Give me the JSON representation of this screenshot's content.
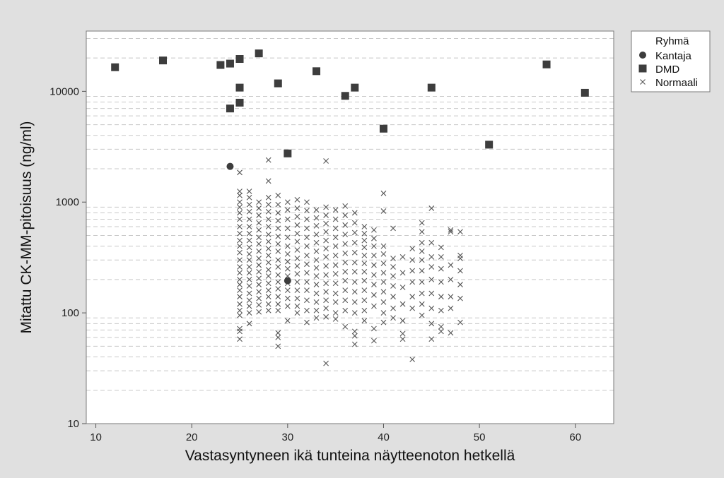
{
  "chart_data": {
    "type": "scatter",
    "xlabel": "Vastasyntyneen ikä tunteina näytteenoton hetkellä",
    "ylabel": "Mitattu CK-MM-pitoisuus (ng/ml)",
    "xlim": [
      9,
      64
    ],
    "ylim": [
      10,
      35000
    ],
    "yscale": "log",
    "x_ticks": [
      10,
      20,
      30,
      40,
      50,
      60
    ],
    "y_ticks": [
      10,
      100,
      1000,
      10000
    ],
    "grid": "horizontal dashed at minor log ticks",
    "legend": {
      "title": "Ryhmä",
      "placement": "outside-top-right"
    },
    "series": [
      {
        "name": "Kantaja",
        "marker": "circle",
        "color": "#3d3d3d",
        "points": [
          [
            24,
            2100
          ],
          [
            30,
            195
          ]
        ]
      },
      {
        "name": "DMD",
        "marker": "square",
        "color": "#3d3d3d",
        "points": [
          [
            12,
            16500
          ],
          [
            17,
            19000
          ],
          [
            23,
            17300
          ],
          [
            24,
            17800
          ],
          [
            24,
            7000
          ],
          [
            25,
            19600
          ],
          [
            25,
            10800
          ],
          [
            25,
            7900
          ],
          [
            27,
            22000
          ],
          [
            29,
            11800
          ],
          [
            30,
            2750
          ],
          [
            33,
            15200
          ],
          [
            36,
            9100
          ],
          [
            37,
            10800
          ],
          [
            40,
            4600
          ],
          [
            45,
            10800
          ],
          [
            51,
            3300
          ],
          [
            57,
            17500
          ],
          [
            61,
            9700
          ]
        ]
      },
      {
        "name": "Normaali",
        "marker": "x",
        "color": "#555555",
        "points": [
          [
            25,
            1850
          ],
          [
            25,
            1250
          ],
          [
            25,
            1150
          ],
          [
            25,
            1000
          ],
          [
            25,
            900
          ],
          [
            25,
            800
          ],
          [
            25,
            700
          ],
          [
            25,
            600
          ],
          [
            25,
            520
          ],
          [
            25,
            450
          ],
          [
            25,
            400
          ],
          [
            25,
            350
          ],
          [
            25,
            300
          ],
          [
            25,
            260
          ],
          [
            25,
            230
          ],
          [
            25,
            200
          ],
          [
            25,
            180
          ],
          [
            25,
            160
          ],
          [
            25,
            140
          ],
          [
            25,
            120
          ],
          [
            25,
            105
          ],
          [
            25,
            95
          ],
          [
            25,
            72
          ],
          [
            25,
            68
          ],
          [
            25,
            58
          ],
          [
            26,
            1250
          ],
          [
            26,
            1100
          ],
          [
            26,
            950
          ],
          [
            26,
            820
          ],
          [
            26,
            700
          ],
          [
            26,
            600
          ],
          [
            26,
            520
          ],
          [
            26,
            450
          ],
          [
            26,
            390
          ],
          [
            26,
            340
          ],
          [
            26,
            300
          ],
          [
            26,
            260
          ],
          [
            26,
            230
          ],
          [
            26,
            200
          ],
          [
            26,
            175
          ],
          [
            26,
            150
          ],
          [
            26,
            130
          ],
          [
            26,
            115
          ],
          [
            26,
            100
          ],
          [
            26,
            80
          ],
          [
            27,
            1000
          ],
          [
            27,
            880
          ],
          [
            27,
            760
          ],
          [
            27,
            650
          ],
          [
            27,
            560
          ],
          [
            27,
            480
          ],
          [
            27,
            420
          ],
          [
            27,
            360
          ],
          [
            27,
            310
          ],
          [
            27,
            270
          ],
          [
            27,
            235
          ],
          [
            27,
            205
          ],
          [
            27,
            180
          ],
          [
            27,
            155
          ],
          [
            27,
            135
          ],
          [
            27,
            118
          ],
          [
            27,
            102
          ],
          [
            28,
            2400
          ],
          [
            28,
            1550
          ],
          [
            28,
            1100
          ],
          [
            28,
            950
          ],
          [
            28,
            820
          ],
          [
            28,
            700
          ],
          [
            28,
            600
          ],
          [
            28,
            510
          ],
          [
            28,
            440
          ],
          [
            28,
            380
          ],
          [
            28,
            330
          ],
          [
            28,
            285
          ],
          [
            28,
            245
          ],
          [
            28,
            215
          ],
          [
            28,
            185
          ],
          [
            28,
            160
          ],
          [
            28,
            140
          ],
          [
            28,
            120
          ],
          [
            28,
            105
          ],
          [
            29,
            1150
          ],
          [
            29,
            950
          ],
          [
            29,
            800
          ],
          [
            29,
            680
          ],
          [
            29,
            580
          ],
          [
            29,
            490
          ],
          [
            29,
            420
          ],
          [
            29,
            360
          ],
          [
            29,
            300
          ],
          [
            29,
            260
          ],
          [
            29,
            220
          ],
          [
            29,
            190
          ],
          [
            29,
            165
          ],
          [
            29,
            140
          ],
          [
            29,
            120
          ],
          [
            29,
            105
          ],
          [
            29,
            66
          ],
          [
            29,
            60
          ],
          [
            29,
            50
          ],
          [
            30,
            1000
          ],
          [
            30,
            850
          ],
          [
            30,
            700
          ],
          [
            30,
            580
          ],
          [
            30,
            480
          ],
          [
            30,
            400
          ],
          [
            30,
            340
          ],
          [
            30,
            290
          ],
          [
            30,
            250
          ],
          [
            30,
            215
          ],
          [
            30,
            185
          ],
          [
            30,
            160
          ],
          [
            30,
            135
          ],
          [
            30,
            115
          ],
          [
            30,
            85
          ],
          [
            31,
            1050
          ],
          [
            31,
            880
          ],
          [
            31,
            740
          ],
          [
            31,
            620
          ],
          [
            31,
            520
          ],
          [
            31,
            440
          ],
          [
            31,
            370
          ],
          [
            31,
            310
          ],
          [
            31,
            265
          ],
          [
            31,
            225
          ],
          [
            31,
            190
          ],
          [
            31,
            160
          ],
          [
            31,
            135
          ],
          [
            31,
            115
          ],
          [
            31,
            100
          ],
          [
            32,
            1000
          ],
          [
            32,
            840
          ],
          [
            32,
            700
          ],
          [
            32,
            580
          ],
          [
            32,
            480
          ],
          [
            32,
            400
          ],
          [
            32,
            330
          ],
          [
            32,
            275
          ],
          [
            32,
            230
          ],
          [
            32,
            190
          ],
          [
            32,
            160
          ],
          [
            32,
            130
          ],
          [
            32,
            105
          ],
          [
            32,
            82
          ],
          [
            33,
            850
          ],
          [
            33,
            720
          ],
          [
            33,
            610
          ],
          [
            33,
            510
          ],
          [
            33,
            430
          ],
          [
            33,
            360
          ],
          [
            33,
            300
          ],
          [
            33,
            255
          ],
          [
            33,
            215
          ],
          [
            33,
            180
          ],
          [
            33,
            150
          ],
          [
            33,
            125
          ],
          [
            33,
            105
          ],
          [
            33,
            90
          ],
          [
            34,
            2350
          ],
          [
            34,
            900
          ],
          [
            34,
            760
          ],
          [
            34,
            640
          ],
          [
            34,
            540
          ],
          [
            34,
            450
          ],
          [
            34,
            380
          ],
          [
            34,
            320
          ],
          [
            34,
            265
          ],
          [
            34,
            220
          ],
          [
            34,
            185
          ],
          [
            34,
            155
          ],
          [
            34,
            130
          ],
          [
            34,
            110
          ],
          [
            34,
            92
          ],
          [
            34,
            35
          ],
          [
            35,
            850
          ],
          [
            35,
            700
          ],
          [
            35,
            580
          ],
          [
            35,
            480
          ],
          [
            35,
            400
          ],
          [
            35,
            330
          ],
          [
            35,
            270
          ],
          [
            35,
            225
          ],
          [
            35,
            185
          ],
          [
            35,
            150
          ],
          [
            35,
            125
          ],
          [
            35,
            100
          ],
          [
            35,
            88
          ],
          [
            36,
            920
          ],
          [
            36,
            760
          ],
          [
            36,
            620
          ],
          [
            36,
            510
          ],
          [
            36,
            420
          ],
          [
            36,
            345
          ],
          [
            36,
            285
          ],
          [
            36,
            235
          ],
          [
            36,
            195
          ],
          [
            36,
            160
          ],
          [
            36,
            130
          ],
          [
            36,
            105
          ],
          [
            36,
            75
          ],
          [
            37,
            800
          ],
          [
            37,
            650
          ],
          [
            37,
            530
          ],
          [
            37,
            430
          ],
          [
            37,
            350
          ],
          [
            37,
            285
          ],
          [
            37,
            235
          ],
          [
            37,
            190
          ],
          [
            37,
            155
          ],
          [
            37,
            125
          ],
          [
            37,
            100
          ],
          [
            37,
            68
          ],
          [
            37,
            62
          ],
          [
            37,
            52
          ],
          [
            38,
            600
          ],
          [
            38,
            520
          ],
          [
            38,
            450
          ],
          [
            38,
            390
          ],
          [
            38,
            330
          ],
          [
            38,
            280
          ],
          [
            38,
            235
          ],
          [
            38,
            195
          ],
          [
            38,
            160
          ],
          [
            38,
            130
          ],
          [
            38,
            105
          ],
          [
            38,
            85
          ],
          [
            39,
            560
          ],
          [
            39,
            470
          ],
          [
            39,
            400
          ],
          [
            39,
            330
          ],
          [
            39,
            270
          ],
          [
            39,
            220
          ],
          [
            39,
            180
          ],
          [
            39,
            145
          ],
          [
            39,
            115
          ],
          [
            39,
            72
          ],
          [
            39,
            56
          ],
          [
            40,
            1200
          ],
          [
            40,
            830
          ],
          [
            40,
            400
          ],
          [
            40,
            340
          ],
          [
            40,
            280
          ],
          [
            40,
            230
          ],
          [
            40,
            190
          ],
          [
            40,
            155
          ],
          [
            40,
            125
          ],
          [
            40,
            100
          ],
          [
            40,
            82
          ],
          [
            41,
            580
          ],
          [
            41,
            310
          ],
          [
            41,
            260
          ],
          [
            41,
            215
          ],
          [
            41,
            175
          ],
          [
            41,
            140
          ],
          [
            41,
            110
          ],
          [
            41,
            90
          ],
          [
            42,
            320
          ],
          [
            42,
            230
          ],
          [
            42,
            170
          ],
          [
            42,
            120
          ],
          [
            42,
            85
          ],
          [
            42,
            65
          ],
          [
            42,
            58
          ],
          [
            43,
            380
          ],
          [
            43,
            300
          ],
          [
            43,
            240
          ],
          [
            43,
            190
          ],
          [
            43,
            140
          ],
          [
            43,
            110
          ],
          [
            43,
            38
          ],
          [
            44,
            650
          ],
          [
            44,
            540
          ],
          [
            44,
            430
          ],
          [
            44,
            360
          ],
          [
            44,
            300
          ],
          [
            44,
            240
          ],
          [
            44,
            190
          ],
          [
            44,
            150
          ],
          [
            44,
            120
          ],
          [
            44,
            95
          ],
          [
            45,
            880
          ],
          [
            45,
            430
          ],
          [
            45,
            320
          ],
          [
            45,
            260
          ],
          [
            45,
            200
          ],
          [
            45,
            150
          ],
          [
            45,
            110
          ],
          [
            45,
            80
          ],
          [
            45,
            58
          ],
          [
            46,
            390
          ],
          [
            46,
            320
          ],
          [
            46,
            250
          ],
          [
            46,
            190
          ],
          [
            46,
            140
          ],
          [
            46,
            105
          ],
          [
            46,
            75
          ],
          [
            46,
            68
          ],
          [
            47,
            560
          ],
          [
            47,
            540
          ],
          [
            47,
            270
          ],
          [
            47,
            200
          ],
          [
            47,
            140
          ],
          [
            47,
            110
          ],
          [
            47,
            66
          ],
          [
            48,
            540
          ],
          [
            48,
            330
          ],
          [
            48,
            310
          ],
          [
            48,
            240
          ],
          [
            48,
            180
          ],
          [
            48,
            135
          ],
          [
            48,
            82
          ]
        ]
      }
    ]
  }
}
